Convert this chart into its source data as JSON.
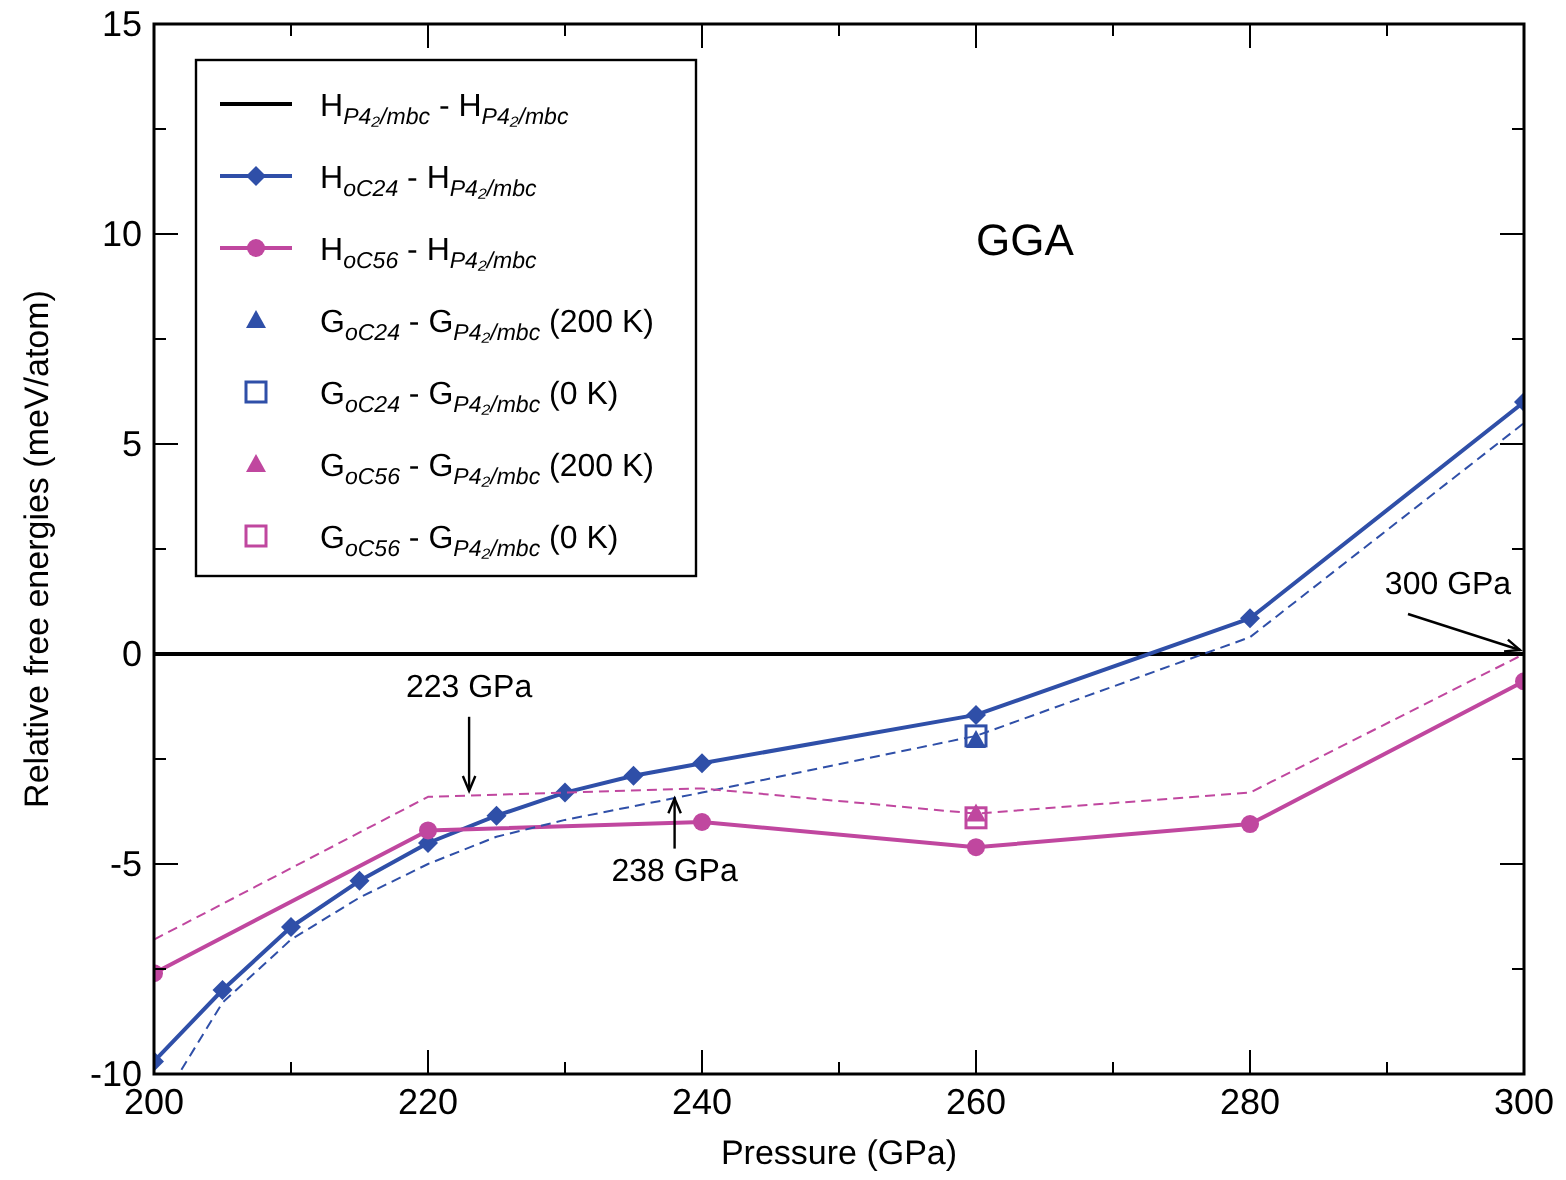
{
  "chart_data": {
    "type": "line",
    "xlabel": "Pressure (GPa)",
    "ylabel": "Relative free energies (meV/atom)",
    "xlim": [
      200,
      300
    ],
    "ylim": [
      -10,
      15
    ],
    "xticks": [
      200,
      {
        "value": 210,
        "label": null
      },
      220,
      {
        "value": 230,
        "label": null
      },
      240,
      {
        "value": 250,
        "label": null
      },
      260,
      {
        "value": 270,
        "label": null
      },
      280,
      {
        "value": 290,
        "label": null
      },
      300
    ],
    "yticks": [
      -10,
      {
        "value": -7.5,
        "label": null
      },
      -5,
      {
        "value": -2.5,
        "label": null
      },
      0,
      {
        "value": 2.5,
        "label": null
      },
      5,
      {
        "value": 7.5,
        "label": null
      },
      10,
      {
        "value": 12.5,
        "label": null
      },
      15
    ],
    "grid": false,
    "legend": "top left",
    "series": [
      {
        "name": "H$_{P4₂/mbc}$ - H$_{P4₂/mbc}$",
        "color": "#000000",
        "marker": "none",
        "line_style": "solid",
        "x": [
          200,
          300
        ],
        "values": [
          0,
          0
        ]
      },
      {
        "name": "H$_{oC24}$ - H$_{P4₂/mbc}$",
        "color": "#2f4fa8",
        "marker": "diamond",
        "line_style": "solid",
        "x": [
          200,
          205,
          210,
          215,
          220,
          225,
          230,
          235,
          240,
          260,
          280,
          300
        ],
        "values": [
          -9.7,
          -8.0,
          -6.5,
          -5.4,
          -4.5,
          -3.85,
          -3.3,
          -2.9,
          -2.6,
          -1.45,
          0.85,
          6.0
        ]
      },
      {
        "name": "H$_{oC56}$ - H$_{P4₂/mbc}$",
        "color": "#c0479f",
        "marker": "circle",
        "line_style": "solid",
        "x": [
          200,
          220,
          240,
          260,
          280,
          300
        ],
        "values": [
          -7.6,
          -4.2,
          -4.0,
          -4.6,
          -4.05,
          -0.65
        ]
      },
      {
        "color": "#2f4fa8",
        "marker": "none",
        "line_style": "dashed",
        "x": [
          202,
          205,
          210,
          215,
          220,
          225,
          230,
          240,
          260,
          280,
          300
        ],
        "values": [
          -9.9,
          -8.3,
          -6.8,
          -5.8,
          -5.0,
          -4.35,
          -3.95,
          -3.3,
          -1.95,
          0.4,
          5.5
        ]
      },
      {
        "color": "#c0479f",
        "marker": "none",
        "line_style": "dashed",
        "x": [
          200,
          220,
          240,
          260,
          280,
          300
        ],
        "values": [
          -6.8,
          -3.4,
          -3.2,
          -3.8,
          -3.3,
          0
        ]
      },
      {
        "name": "G$_{oC24}$ - G$_{P4₂/mbc}$ (200 K)",
        "type": "scatter",
        "color": "#2f4fa8",
        "marker": "triangle",
        "x": [
          260
        ],
        "values": [
          -2.05
        ]
      },
      {
        "name": "G$_{oC24}$ - G$_{P4₂/mbc}$ (0 K)",
        "type": "scatter",
        "color": "#2f4fa8",
        "marker": "square",
        "x": [
          260
        ],
        "values": [
          -1.95
        ]
      },
      {
        "name": "G$_{oC56}$ - G$_{P4₂/mbc}$ (200 K)",
        "type": "scatter",
        "color": "#c0479f",
        "marker": "triangle",
        "x": [
          260
        ],
        "values": [
          -3.8
        ]
      },
      {
        "name": "G$_{oC56}$ - G$_{P4₂/mbc}$ (0 K)",
        "type": "scatter",
        "color": "#c0479f",
        "marker": "square",
        "x": [
          260
        ],
        "values": [
          -3.9
        ]
      }
    ],
    "annotations": [
      "GGA",
      {
        "text": "223 GPa",
        "x": 223,
        "y": -3.4
      },
      {
        "text": "238 GPa",
        "x": 238,
        "y": -3.3
      },
      {
        "text": "300 GPa",
        "x": 300,
        "y": 0
      }
    ]
  }
}
